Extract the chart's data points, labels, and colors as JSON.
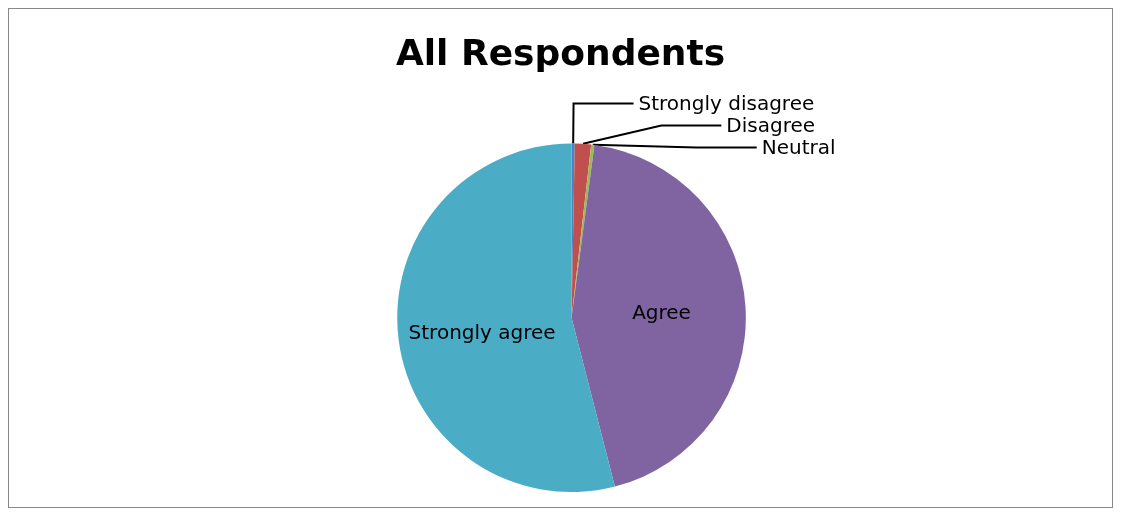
{
  "chart_data": {
    "type": "pie",
    "title": "All Respondents",
    "categories": [
      "Strongly disagree",
      "Disagree",
      "Neutral",
      "Agree",
      "Strongly agree"
    ],
    "values": [
      0.3,
      1.5,
      0.3,
      43.9,
      54
    ],
    "colors": [
      "#4f81bd",
      "#c0504d",
      "#9bbb59",
      "#8064a2",
      "#4bacc6"
    ],
    "legend": false
  }
}
